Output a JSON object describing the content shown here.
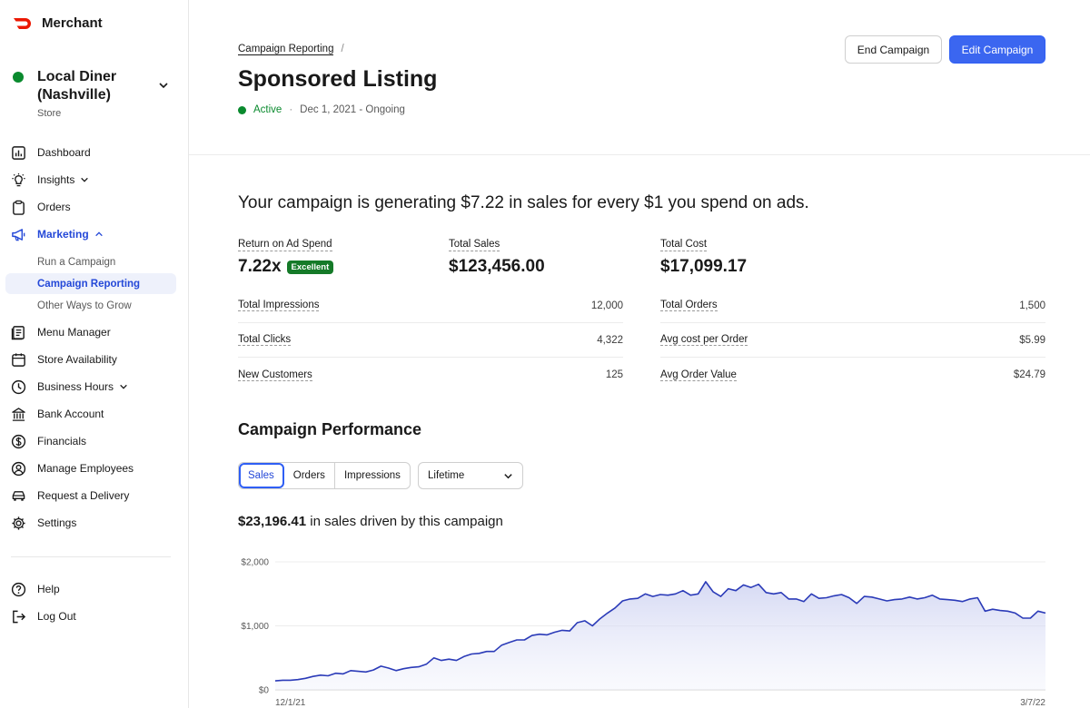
{
  "app": {
    "name": "Merchant",
    "brand_color": "#eb1700"
  },
  "store": {
    "name": "Local Diner (Nashville)",
    "type": "Store",
    "status_color": "#0a8a2e"
  },
  "sidebar": {
    "items": [
      {
        "label": "Dashboard",
        "icon": "chart-icon"
      },
      {
        "label": "Insights",
        "icon": "lightbulb-icon"
      },
      {
        "label": "Orders",
        "icon": "clipboard-icon"
      },
      {
        "label": "Marketing",
        "icon": "megaphone-icon"
      },
      {
        "label": "Menu Manager",
        "icon": "menu-book-icon"
      },
      {
        "label": "Store Availability",
        "icon": "calendar-icon"
      },
      {
        "label": "Business Hours",
        "icon": "clock-icon"
      },
      {
        "label": "Bank Account",
        "icon": "bank-icon"
      },
      {
        "label": "Financials",
        "icon": "dollar-circle-icon"
      },
      {
        "label": "Manage Employees",
        "icon": "person-circle-icon"
      },
      {
        "label": "Request a Delivery",
        "icon": "car-icon"
      },
      {
        "label": "Settings",
        "icon": "gear-icon"
      }
    ],
    "marketing_sub": [
      {
        "label": "Run a Campaign"
      },
      {
        "label": "Campaign Reporting"
      },
      {
        "label": "Other Ways to Grow"
      }
    ],
    "footer": [
      {
        "label": "Help",
        "icon": "help-icon"
      },
      {
        "label": "Log Out",
        "icon": "logout-icon"
      }
    ]
  },
  "header": {
    "breadcrumb": "Campaign Reporting",
    "breadcrumb_sep": "/",
    "title": "Sponsored Listing",
    "status": "Active",
    "status_sep": "·",
    "date_range": "Dec 1, 2021 - Ongoing",
    "end_button": "End Campaign",
    "edit_button": "Edit Campaign",
    "accent": "#3b66f0"
  },
  "summary": {
    "headline": "Your campaign is generating $7.22 in sales for every $1 you spend on ads.",
    "kpis": [
      {
        "label": "Return on Ad Spend",
        "value": "7.22x",
        "badge": "Excellent"
      },
      {
        "label": "Total Sales",
        "value": "$123,456.00"
      },
      {
        "label": "Total Cost",
        "value": "$17,099.17"
      }
    ],
    "left_metrics": [
      {
        "label": "Total Impressions",
        "value": "12,000"
      },
      {
        "label": "Total Clicks",
        "value": "4,322"
      },
      {
        "label": "New Customers",
        "value": "125"
      }
    ],
    "right_metrics": [
      {
        "label": "Total Orders",
        "value": "1,500"
      },
      {
        "label": "Avg cost per Order",
        "value": "$5.99"
      },
      {
        "label": "Avg Order Value",
        "value": "$24.79"
      }
    ]
  },
  "performance": {
    "title": "Campaign Performance",
    "tabs": [
      "Sales",
      "Orders",
      "Impressions"
    ],
    "selected_tab": "Sales",
    "range": "Lifetime",
    "sales_value": "$23,196.41",
    "sales_suffix": " in sales driven by this campaign"
  },
  "chart_data": {
    "type": "area",
    "title": "",
    "xlabel": "",
    "ylabel": "",
    "ylim": [
      0,
      2000
    ],
    "yticks": [
      "$0",
      "$1,000",
      "$2,000"
    ],
    "xticks": [
      "12/1/21",
      "3/7/22"
    ],
    "grid": true,
    "series": [
      {
        "color": "#2b3bb8",
        "values": [
          140,
          150,
          150,
          160,
          180,
          210,
          230,
          220,
          260,
          250,
          300,
          290,
          280,
          310,
          370,
          340,
          300,
          330,
          350,
          360,
          400,
          500,
          460,
          480,
          460,
          520,
          560,
          570,
          600,
          600,
          700,
          740,
          780,
          780,
          850,
          870,
          860,
          900,
          930,
          920,
          1050,
          1080,
          1000,
          1110,
          1200,
          1280,
          1390,
          1420,
          1430,
          1500,
          1460,
          1490,
          1480,
          1500,
          1550,
          1480,
          1500,
          1690,
          1530,
          1460,
          1580,
          1550,
          1640,
          1600,
          1650,
          1520,
          1500,
          1520,
          1420,
          1420,
          1380,
          1500,
          1430,
          1440,
          1470,
          1490,
          1440,
          1350,
          1460,
          1450,
          1420,
          1390,
          1410,
          1420,
          1450,
          1420,
          1440,
          1480,
          1420,
          1410,
          1400,
          1380,
          1420,
          1440,
          1230,
          1260,
          1240,
          1230,
          1200,
          1120,
          1120,
          1230,
          1200
        ]
      }
    ]
  }
}
